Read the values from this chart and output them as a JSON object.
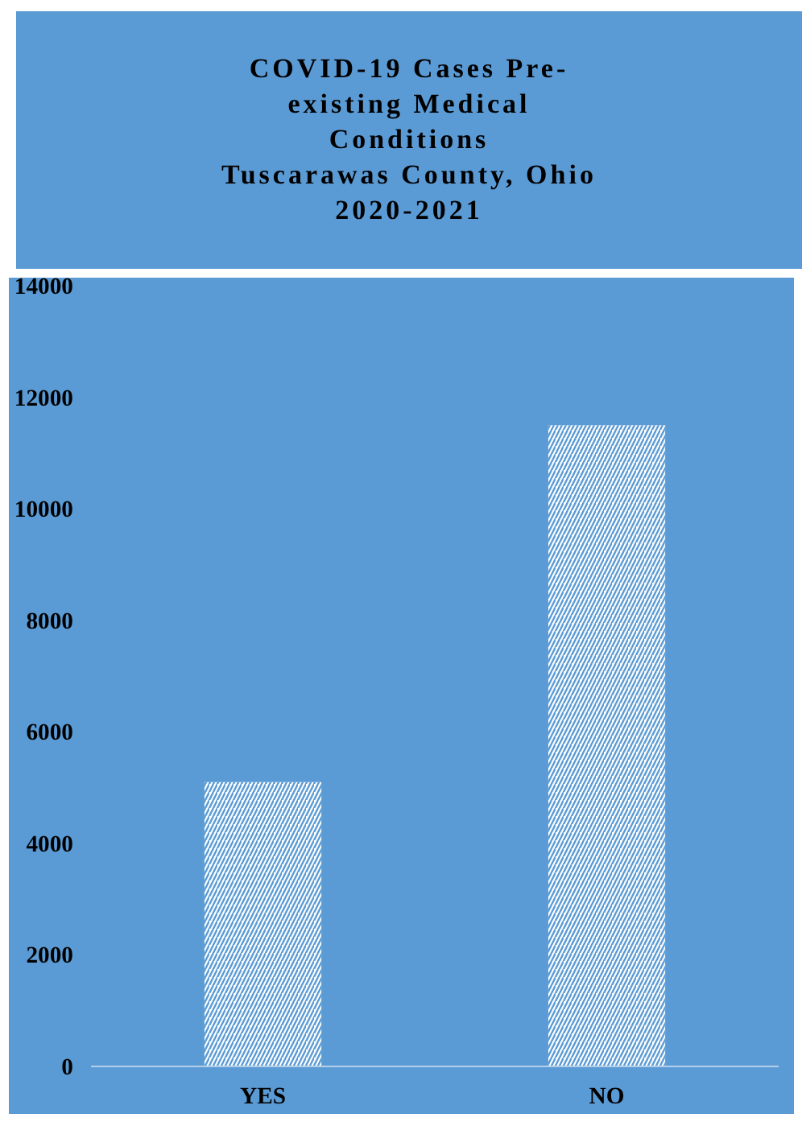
{
  "chart_data": {
    "type": "bar",
    "title": "COVID-19 Cases Pre-\nexisting Medical\nConditions\nTuscarawas County, Ohio\n2020-2021",
    "categories": [
      "YES",
      "NO"
    ],
    "values": [
      5100,
      11500
    ],
    "color": "#ffffff",
    "ylim": [
      0,
      14000
    ],
    "yticks": [
      0,
      2000,
      4000,
      6000,
      8000,
      10000,
      12000,
      14000
    ]
  }
}
